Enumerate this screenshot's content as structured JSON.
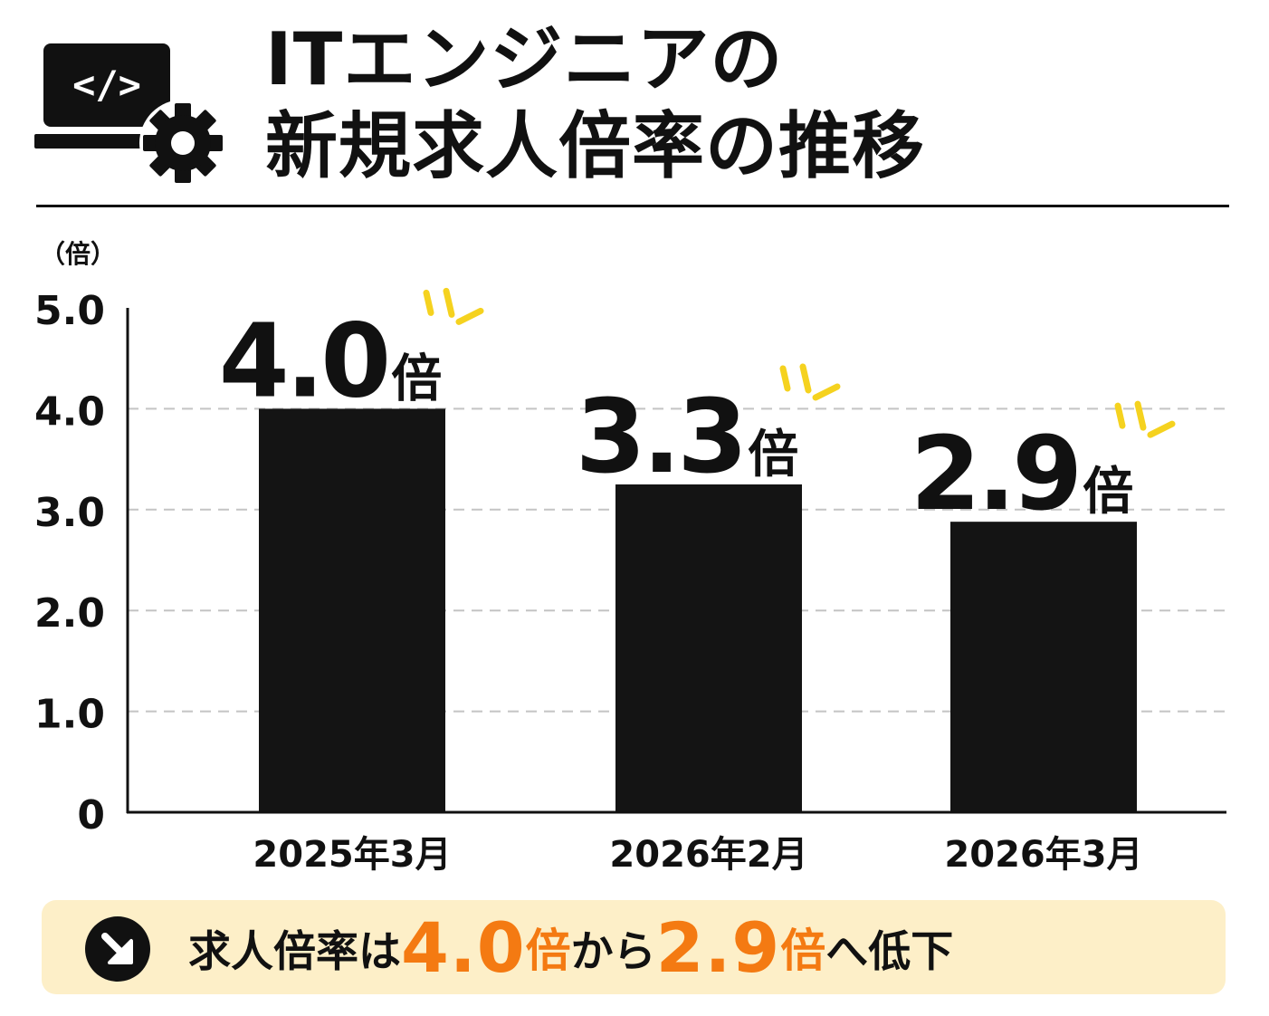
{
  "header": {
    "title_line1": "ITエンジニアの",
    "title_line2": "新規求人倍率の推移",
    "icon": "laptop-code-gear-icon"
  },
  "chart_data": {
    "type": "bar",
    "title": "ITエンジニアの新規求人倍率の推移",
    "ylabel": "（倍）",
    "xlabel": "",
    "categories": [
      "2025年3月",
      "2026年2月",
      "2026年3月"
    ],
    "values": [
      4.0,
      3.25,
      2.88
    ],
    "value_labels": [
      "4.0",
      "3.3",
      "2.9"
    ],
    "value_unit": "倍",
    "yticks": [
      "0",
      "1.0",
      "2.0",
      "3.0",
      "4.0",
      "5.0"
    ],
    "ylim": [
      0,
      5
    ],
    "grid": true,
    "bar_color": "#141414",
    "accent_color": "#f5d21f"
  },
  "summary": {
    "icon": "arrow-down-right-icon",
    "parts": [
      {
        "text": "求人倍率は",
        "style": "normal"
      },
      {
        "text": "4.0",
        "style": "highlight-number"
      },
      {
        "text": "倍",
        "style": "highlight-unit"
      },
      {
        "text": "から",
        "style": "normal"
      },
      {
        "text": "2.9",
        "style": "highlight-number"
      },
      {
        "text": "倍",
        "style": "highlight-unit"
      },
      {
        "text": "へ低下",
        "style": "normal"
      }
    ],
    "highlight_color": "#f47a12",
    "background_color": "#fdefc8"
  }
}
